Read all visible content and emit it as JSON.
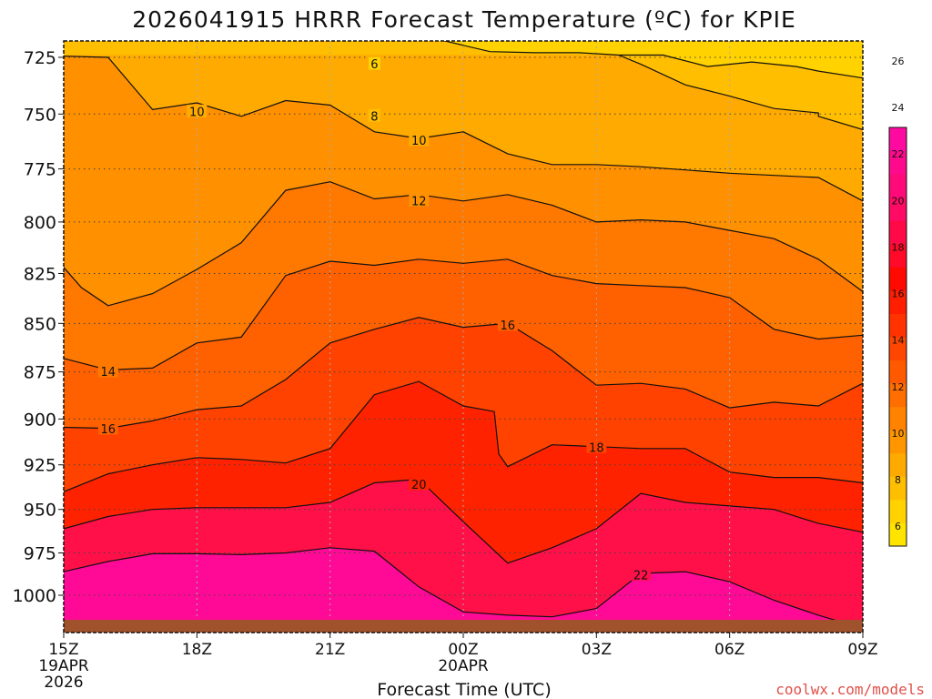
{
  "chart_data": {
    "type": "heatmap",
    "title": "2026041915 HRRR Forecast Temperature (ºC) for KPIE",
    "xlabel": "Forecast Time (UTC)",
    "ylabel": "",
    "credit": "coolwx.com/models",
    "x_ticks": [
      {
        "label": "15Z",
        "date": "19APR",
        "year": "2026"
      },
      {
        "label": "18Z"
      },
      {
        "label": "21Z"
      },
      {
        "label": "00Z",
        "date": "20APR"
      },
      {
        "label": "03Z"
      },
      {
        "label": "06Z"
      },
      {
        "label": "09Z"
      }
    ],
    "xlim_hours": [
      0,
      18
    ],
    "y_ticks": [
      "725",
      "750",
      "775",
      "800",
      "825",
      "850",
      "875",
      "900",
      "925",
      "950",
      "975",
      "1000"
    ],
    "ylim_hpa": [
      1015,
      713
    ],
    "colorbar": {
      "ticks": [
        "6",
        "8",
        "10",
        "12",
        "14",
        "16",
        "18",
        "20",
        "22",
        "24",
        "26"
      ],
      "colors": [
        "#ffe400",
        "#ffd200",
        "#ffbe00",
        "#ffaa00",
        "#ff9600",
        "#ff8200",
        "#ff6e00",
        "#ff5a00",
        "#ff4600",
        "#ff3200",
        "#ff1e00",
        "#ff0a00",
        "#ff0a28",
        "#ff0a46",
        "#ff0a64",
        "#ff0a78",
        "#ff0a8c",
        "#ff0aa0"
      ]
    },
    "contours": [
      {
        "level": 6,
        "label": "6",
        "points": [
          [
            7.8,
            713
          ],
          [
            8.6,
            718
          ],
          [
            9.6,
            722.5
          ],
          [
            10.6,
            723
          ],
          [
            11.6,
            723
          ],
          [
            12.5,
            724
          ],
          [
            13.5,
            724
          ],
          [
            14.5,
            729
          ],
          [
            15.5,
            727
          ],
          [
            16.5,
            729
          ],
          [
            17,
            731
          ],
          [
            18,
            734
          ]
        ]
      },
      {
        "level": 8,
        "label": "8",
        "points": [
          [
            12.5,
            724
          ],
          [
            13,
            728
          ],
          [
            14,
            737
          ],
          [
            15,
            742
          ],
          [
            16,
            747.5
          ],
          [
            17,
            749.5
          ],
          [
            17,
            751
          ],
          [
            18,
            757
          ]
        ]
      },
      {
        "level": 10,
        "label": "10",
        "points": [
          [
            0,
            724.5
          ],
          [
            1,
            725
          ],
          [
            2,
            748
          ],
          [
            3,
            745
          ],
          [
            4,
            751
          ],
          [
            5,
            744
          ],
          [
            6,
            746
          ],
          [
            7,
            758
          ],
          [
            8,
            761
          ],
          [
            9,
            758
          ],
          [
            10,
            768
          ],
          [
            11,
            773
          ],
          [
            12,
            773
          ],
          [
            13,
            774
          ],
          [
            14,
            775.5
          ],
          [
            15,
            777
          ],
          [
            16,
            778
          ],
          [
            17,
            779
          ],
          [
            18,
            790
          ]
        ]
      },
      {
        "level": 12,
        "label": "12",
        "points": [
          [
            0,
            822
          ],
          [
            0.4,
            832
          ],
          [
            1,
            841
          ],
          [
            2,
            835
          ],
          [
            3,
            823
          ],
          [
            4,
            810
          ],
          [
            5,
            785
          ],
          [
            6,
            781
          ],
          [
            7,
            789
          ],
          [
            8,
            787
          ],
          [
            9,
            790
          ],
          [
            10,
            787
          ],
          [
            11,
            792
          ],
          [
            12,
            800
          ],
          [
            13,
            799
          ],
          [
            14,
            800
          ],
          [
            15,
            804
          ],
          [
            16,
            808
          ],
          [
            17,
            818
          ],
          [
            18,
            834
          ]
        ]
      },
      {
        "level": 14,
        "label": "14",
        "points": [
          [
            0,
            868
          ],
          [
            1,
            874
          ],
          [
            2,
            873
          ],
          [
            3,
            860
          ],
          [
            4,
            857
          ],
          [
            5,
            826
          ],
          [
            6,
            819
          ],
          [
            7,
            821
          ],
          [
            8,
            818
          ],
          [
            9,
            820
          ],
          [
            10,
            818
          ],
          [
            11,
            826
          ],
          [
            12,
            830
          ],
          [
            13,
            831
          ],
          [
            14,
            832
          ],
          [
            15,
            837
          ],
          [
            16,
            853
          ],
          [
            17,
            858
          ],
          [
            18,
            856
          ]
        ]
      },
      {
        "level": 16,
        "label": "16",
        "points": [
          [
            0,
            904.5
          ],
          [
            1,
            905
          ],
          [
            2,
            901
          ],
          [
            3,
            895
          ],
          [
            4,
            893
          ],
          [
            5,
            879
          ],
          [
            6,
            860
          ],
          [
            7,
            853
          ],
          [
            8,
            847
          ],
          [
            9,
            852
          ],
          [
            10,
            850
          ],
          [
            11,
            864
          ],
          [
            12,
            882
          ],
          [
            13,
            881
          ],
          [
            14,
            884
          ],
          [
            15,
            894
          ],
          [
            16,
            891
          ],
          [
            17,
            893
          ],
          [
            18,
            881
          ]
        ]
      },
      {
        "level": 18,
        "label": "18",
        "points": [
          [
            0,
            940
          ],
          [
            1,
            930
          ],
          [
            2,
            925
          ],
          [
            3,
            921
          ],
          [
            4,
            922
          ],
          [
            5,
            924
          ],
          [
            6,
            916
          ],
          [
            7,
            887
          ],
          [
            8,
            880
          ],
          [
            9,
            893
          ],
          [
            9.7,
            896
          ],
          [
            9.8,
            919
          ],
          [
            10,
            926
          ],
          [
            11,
            914
          ],
          [
            12,
            915
          ],
          [
            13,
            916
          ],
          [
            14,
            916
          ],
          [
            15,
            929
          ],
          [
            16,
            932
          ],
          [
            17,
            932
          ],
          [
            18,
            935
          ]
        ]
      },
      {
        "level": 20,
        "label": "20",
        "points": [
          [
            0,
            961
          ],
          [
            1,
            954
          ],
          [
            2,
            950
          ],
          [
            3,
            949
          ],
          [
            4,
            949
          ],
          [
            5,
            949
          ],
          [
            6,
            946
          ],
          [
            7,
            935
          ],
          [
            8,
            933
          ],
          [
            9,
            957
          ],
          [
            10,
            981
          ],
          [
            11,
            972
          ],
          [
            12,
            961
          ],
          [
            13,
            941
          ],
          [
            14,
            946
          ],
          [
            15,
            948
          ],
          [
            16,
            950
          ],
          [
            17,
            958
          ],
          [
            18,
            963
          ]
        ]
      },
      {
        "level": 22,
        "label": "22",
        "points": [
          [
            0,
            986
          ],
          [
            1,
            980
          ],
          [
            2,
            975.5
          ],
          [
            3,
            975.5
          ],
          [
            4,
            976
          ],
          [
            5,
            975
          ],
          [
            6,
            972
          ],
          [
            7,
            974
          ],
          [
            8,
            995
          ],
          [
            9,
            1010
          ],
          [
            10,
            1012
          ],
          [
            11,
            1013
          ],
          [
            12,
            1008
          ],
          [
            13,
            987
          ],
          [
            14,
            986
          ],
          [
            15,
            992
          ],
          [
            16,
            1003
          ],
          [
            17,
            1012
          ],
          [
            17.5,
            1016
          ]
        ]
      }
    ]
  }
}
